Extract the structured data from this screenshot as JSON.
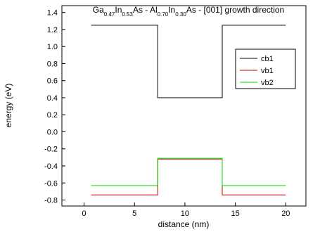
{
  "chart_data": {
    "type": "line",
    "title": [
      "Ga",
      "0.47",
      "In",
      "0.53",
      "As  -  Al",
      "0.70",
      "In",
      "0.30",
      "As   -   [001] growth direction"
    ],
    "x_label": "distance (nm)",
    "y_label": "energy (eV)",
    "xlim": [
      -2.2,
      22
    ],
    "xticks": [
      0,
      5,
      10,
      15,
      20
    ],
    "ylim": [
      -0.87,
      1.48
    ],
    "yticks": [
      1.4,
      1.2,
      {
        "value": 1.0,
        "label": "1.0"
      },
      0.8,
      0.6,
      0.4,
      0.2,
      {
        "value": 0,
        "label": "0.0"
      },
      -0.2,
      -0.4,
      -0.6,
      -0.8
    ],
    "legend": "right",
    "series": [
      {
        "name": "cb1",
        "color": "#000000",
        "x": [
          0.7,
          7.3,
          7.3,
          13.7,
          13.7,
          20
        ],
        "values": [
          1.25,
          1.25,
          0.4,
          0.4,
          1.25,
          1.25
        ]
      },
      {
        "name": "vb1",
        "color": "#cc0000",
        "x": [
          0.7,
          7.3,
          7.3,
          13.7,
          13.7,
          20
        ],
        "values": [
          -0.74,
          -0.74,
          -0.32,
          -0.32,
          -0.74,
          -0.74
        ]
      },
      {
        "name": "vb2",
        "color": "#00dd00",
        "x": [
          0.7,
          7.3,
          7.3,
          13.7,
          13.7,
          20
        ],
        "values": [
          -0.63,
          -0.63,
          -0.31,
          -0.31,
          -0.63,
          -0.63
        ]
      }
    ]
  }
}
